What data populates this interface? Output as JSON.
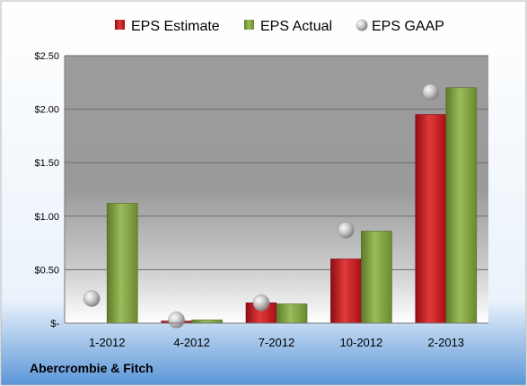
{
  "chart_data": {
    "type": "bar",
    "categories": [
      "1-2012",
      "4-2012",
      "7-2012",
      "10-2012",
      "2-2013"
    ],
    "series": [
      {
        "name": "EPS Estimate",
        "kind": "bar",
        "color": "#c0141c",
        "values": [
          null,
          0.02,
          0.19,
          0.6,
          1.95
        ]
      },
      {
        "name": "EPS Actual",
        "kind": "bar",
        "color": "#7a9a3a",
        "values": [
          1.12,
          0.03,
          0.18,
          0.86,
          2.2
        ]
      },
      {
        "name": "EPS GAAP",
        "kind": "marker",
        "color": "#b0b0b0",
        "values": [
          0.23,
          0.03,
          0.19,
          0.87,
          2.16
        ]
      }
    ],
    "yticks": [
      {
        "value": 0,
        "label": "$-"
      },
      {
        "value": 0.5,
        "label": "$0.50"
      },
      {
        "value": 1.0,
        "label": "$1.00"
      },
      {
        "value": 1.5,
        "label": "$1.50"
      },
      {
        "value": 2.0,
        "label": "$2.00"
      },
      {
        "value": 2.5,
        "label": "$2.50"
      }
    ],
    "ylim": [
      0,
      2.5
    ],
    "grid": true,
    "legend_position": "top",
    "company": "Abercrombie & Fitch"
  }
}
